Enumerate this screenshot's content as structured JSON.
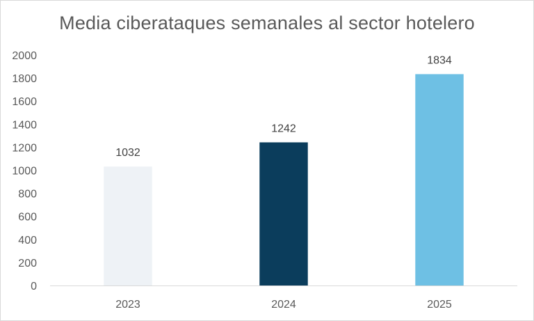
{
  "chart_data": {
    "type": "bar",
    "title": "Media ciberataques semanales al sector hotelero",
    "xlabel": "",
    "ylabel": "",
    "categories": [
      "2023",
      "2024",
      "2025"
    ],
    "values": [
      1032,
      1242,
      1834
    ],
    "data_labels": [
      "1032",
      "1242",
      "1834"
    ],
    "bar_colors": [
      "#eef2f6",
      "#0b3d5c",
      "#6ec0e4"
    ],
    "ylim": [
      0,
      2000
    ],
    "yticks": [
      0,
      200,
      400,
      600,
      800,
      1000,
      1200,
      1400,
      1600,
      1800,
      2000
    ],
    "ytick_labels": [
      "0",
      "200",
      "400",
      "600",
      "800",
      "1000",
      "1200",
      "1400",
      "1600",
      "1800",
      "2000"
    ],
    "grid": false,
    "legend": "none"
  },
  "colors": {
    "title": "#595959",
    "axis_text": "#595959",
    "data_label_text": "#404040",
    "axis_line": "#d9d9d9",
    "border": "#d9d9d9"
  }
}
